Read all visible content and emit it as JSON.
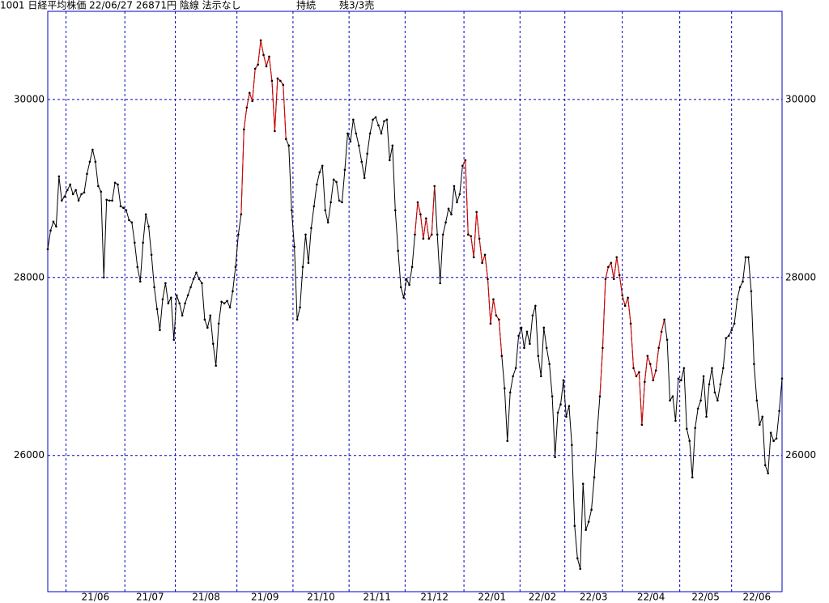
{
  "header": {
    "title": "1001 日経平均株価 22/06/27 26871円 陰線 法示なし",
    "status": "持続",
    "position": "残3/3売"
  },
  "chart_data": {
    "type": "line",
    "color": "#000000",
    "highlight_color": "#e00000",
    "values": [
      28318,
      28527,
      28627,
      28573,
      29136,
      28864,
      28909,
      28982,
      29045,
      28936,
      28982,
      28864,
      28936,
      28955,
      29164,
      29300,
      29436,
      29300,
      29027,
      28964,
      28000,
      28873,
      28864,
      28864,
      29064,
      29045,
      28800,
      28782,
      28755,
      28645,
      28618,
      28391,
      28118,
      27955,
      28391,
      28709,
      28573,
      28255,
      27891,
      27645,
      27409,
      27755,
      27936,
      27709,
      27773,
      27300,
      27800,
      27709,
      27573,
      27709,
      27800,
      27891,
      27982,
      28055,
      27982,
      27936,
      27527,
      27436,
      27573,
      27255,
      27009,
      27482,
      27727,
      27709,
      27736,
      27664,
      27845,
      28118,
      28482,
      28709,
      29664,
      29909,
      30073,
      29982,
      30345,
      30391,
      30664,
      30500,
      30373,
      30482,
      30209,
      29645,
      30236,
      30209,
      30164,
      29555,
      29482,
      28755,
      28345,
      27527,
      27664,
      28118,
      28482,
      28164,
      28555,
      28800,
      29045,
      29182,
      29255,
      28755,
      28618,
      28845,
      29100,
      29073,
      28864,
      28845,
      29209,
      29618,
      29527,
      29773,
      29618,
      29482,
      29300,
      29118,
      29391,
      29618,
      29773,
      29800,
      29709,
      29618,
      29755,
      29773,
      29318,
      29482,
      28755,
      28300,
      27891,
      27773,
      27982,
      27918,
      28118,
      28482,
      28845,
      28709,
      28436,
      28664,
      28436,
      28482,
      29027,
      28482,
      27936,
      28482,
      28618,
      28773,
      28709,
      29027,
      28845,
      28936,
      29255,
      29318,
      28482,
      28464,
      28227,
      28736,
      28436,
      28164,
      28255,
      27982,
      27482,
      27755,
      27573,
      27527,
      27118,
      26755,
      26164,
      26709,
      26891,
      26982,
      27345,
      27436,
      27209,
      27391,
      27255,
      27573,
      27682,
      27118,
      26891,
      27436,
      27209,
      27027,
      26664,
      25982,
      26482,
      26573,
      26845,
      26436,
      26555,
      26118,
      25209,
      24845,
      24727,
      25682,
      25164,
      25255,
      25391,
      25755,
      26255,
      26664,
      27209,
      27982,
      28118,
      28164,
      27982,
      28227,
      28027,
      27800,
      27682,
      27773,
      27482,
      26982,
      26891,
      26936,
      26345,
      26827,
      27118,
      27027,
      26845,
      26955,
      27209,
      27391,
      27527,
      27300,
      26618,
      26664,
      26391,
      26864,
      26845,
      26982,
      26300,
      26164,
      25755,
      26309,
      26527,
      26618,
      26891,
      26436,
      26800,
      26982,
      26709,
      26618,
      26800,
      26982,
      27318,
      27345,
      27409,
      27482,
      27755,
      27891,
      27955,
      28227,
      28227,
      27845,
      27027,
      26618,
      26345,
      26436,
      25891,
      25800,
      26255,
      26164,
      26191,
      26500,
      26864
    ],
    "highlight_ranges": [
      [
        69,
        85
      ],
      [
        131,
        138
      ],
      [
        148,
        162
      ],
      [
        197,
        220
      ]
    ],
    "xlim": [
      0,
      262
    ],
    "xticks": [
      {
        "value": 6.5,
        "label": "21/06"
      },
      {
        "value": 27.5,
        "label": "21/07"
      },
      {
        "value": 45.5,
        "label": "21/08"
      },
      {
        "value": 67.5,
        "label": "21/09"
      },
      {
        "value": 87.5,
        "label": "21/10"
      },
      {
        "value": 107.5,
        "label": "21/11"
      },
      {
        "value": 127.5,
        "label": "21/12"
      },
      {
        "value": 148.5,
        "label": "22/01"
      },
      {
        "value": 168.5,
        "label": "22/02"
      },
      {
        "value": 184.5,
        "label": "22/03"
      },
      {
        "value": 205,
        "label": "22/04"
      },
      {
        "value": 225.5,
        "label": "22/05"
      },
      {
        "value": 244,
        "label": "22/06"
      }
    ],
    "ylim": [
      24470,
      30990
    ],
    "yticks": [
      26000,
      28000,
      30000
    ],
    "grid": true,
    "axis_color": "#0000c0"
  }
}
